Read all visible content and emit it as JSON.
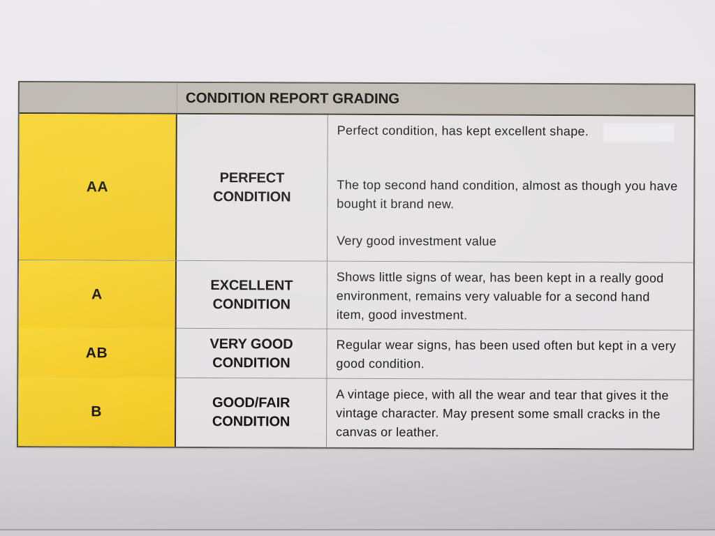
{
  "table": {
    "title": "CONDITION REPORT GRADING",
    "rows": [
      {
        "grade": "AA",
        "condition": "PERFECT CONDITION",
        "description": [
          "Perfect condition, has kept excellent shape.",
          "The top second hand condition, almost as though you have bought it brand new.",
          "Very good investment value"
        ]
      },
      {
        "grade": "A",
        "condition": "EXCELLENT CONDITION",
        "description": [
          "Shows little signs of wear, has been kept in a really good environment, remains very valuable for a second hand item, good investment."
        ]
      },
      {
        "grade": "AB",
        "condition": "VERY GOOD CONDITION",
        "description": [
          "Regular wear signs, has been used often but kept in a very good condition."
        ]
      },
      {
        "grade": "B",
        "condition": "GOOD/FAIR CONDITION",
        "description": [
          "A vintage piece, with all the wear and tear that gives it the vintage character. May present some small cracks in the canvas or leather."
        ]
      }
    ]
  },
  "colors": {
    "grade_cell_yellow": "#F5D02F",
    "header_gray": "#BFBBB3",
    "paper_light": "#E9E7EA",
    "paper_dark": "#C6C3C7",
    "cell_background": "#E4E2E3",
    "text": "#1B1B1B"
  }
}
